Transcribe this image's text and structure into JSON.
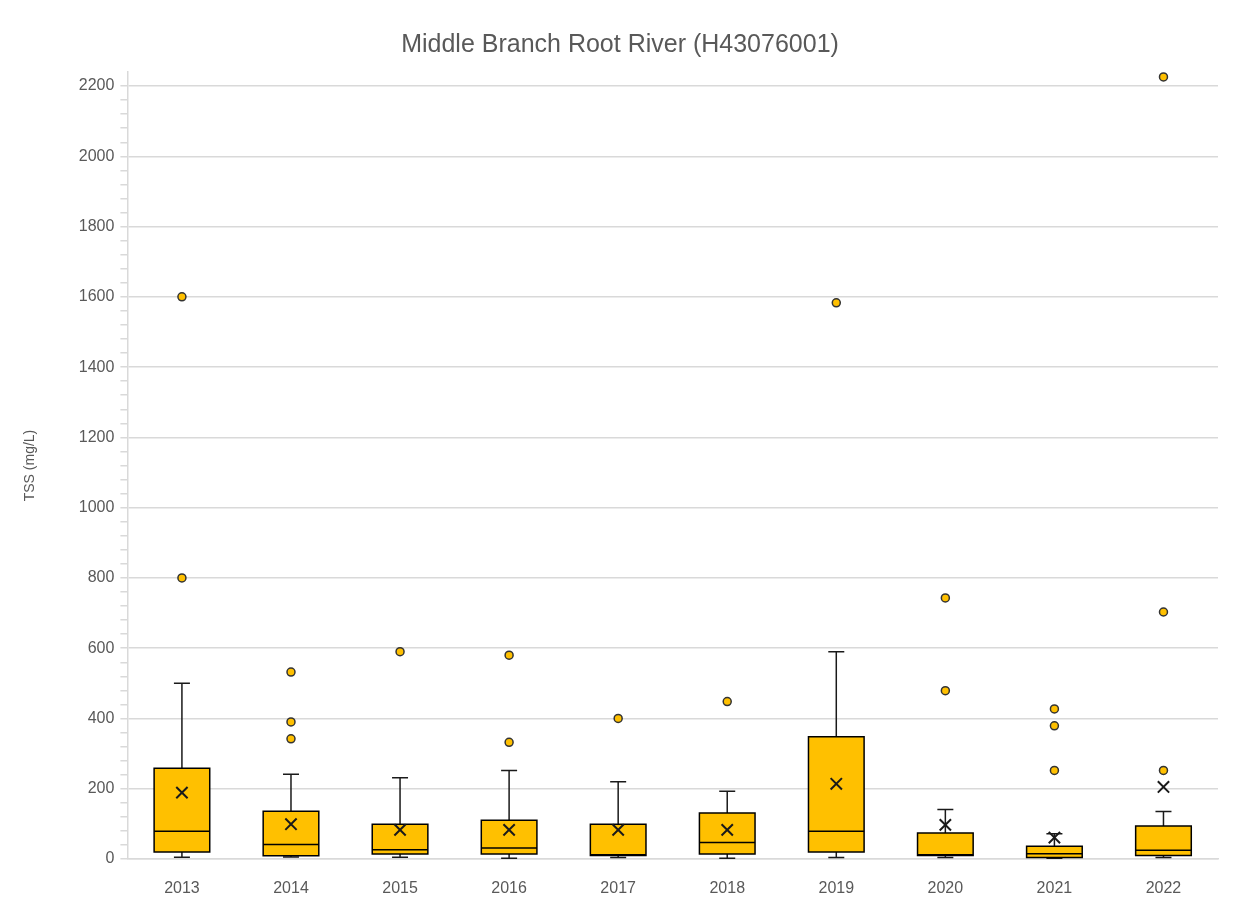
{
  "chart_data": {
    "type": "box",
    "title": "Middle Branch Root River (H43076001)",
    "ylabel": "TSS (mg/L)",
    "categories": [
      "2013",
      "2014",
      "2015",
      "2016",
      "2017",
      "2018",
      "2019",
      "2020",
      "2021",
      "2022"
    ],
    "series": [
      {
        "color": "#ffc000",
        "boxes": [
          {
            "low": 5,
            "q1": 20,
            "median": 79,
            "q3": 258,
            "high": 500,
            "mean": 189,
            "outliers": [
              800,
              1600
            ]
          },
          {
            "low": 6,
            "q1": 9,
            "median": 41,
            "q3": 136,
            "high": 241,
            "mean": 99,
            "outliers": [
              342,
              390,
              532
            ]
          },
          {
            "low": 5,
            "q1": 14,
            "median": 26,
            "q3": 99,
            "high": 231,
            "mean": 83,
            "outliers": [
              590
            ]
          },
          {
            "low": 2,
            "q1": 14,
            "median": 31,
            "q3": 110,
            "high": 252,
            "mean": 83,
            "outliers": [
              332,
              580
            ]
          },
          {
            "low": 4,
            "q1": 10,
            "median": 12,
            "q3": 99,
            "high": 220,
            "mean": 83,
            "outliers": [
              400
            ]
          },
          {
            "low": 2,
            "q1": 14,
            "median": 47,
            "q3": 131,
            "high": 193,
            "mean": 83,
            "outliers": [
              448
            ]
          },
          {
            "low": 4,
            "q1": 20,
            "median": 79,
            "q3": 348,
            "high": 590,
            "mean": 214,
            "outliers": [
              1583
            ]
          },
          {
            "low": 4,
            "q1": 10,
            "median": 12,
            "q3": 74,
            "high": 141,
            "mean": 97,
            "outliers": [
              479,
              743
            ]
          },
          {
            "low": 2,
            "q1": 4,
            "median": 15,
            "q3": 36,
            "high": 72,
            "mean": 61,
            "outliers": [
              252,
              379,
              427
            ]
          },
          {
            "low": 4,
            "q1": 10,
            "median": 25,
            "q3": 94,
            "high": 135,
            "mean": 205,
            "outliers": [
              252,
              703,
              2226
            ]
          }
        ]
      }
    ],
    "ylim": [
      0,
      2240
    ],
    "yticks": [
      0,
      {
        "value": 40,
        "label": null
      },
      {
        "value": 80,
        "label": null
      },
      {
        "value": 120,
        "label": null
      },
      {
        "value": 160,
        "label": null
      },
      200,
      {
        "value": 240,
        "label": null
      },
      {
        "value": 280,
        "label": null
      },
      {
        "value": 320,
        "label": null
      },
      {
        "value": 360,
        "label": null
      },
      400,
      {
        "value": 440,
        "label": null
      },
      {
        "value": 480,
        "label": null
      },
      {
        "value": 520,
        "label": null
      },
      {
        "value": 560,
        "label": null
      },
      600,
      {
        "value": 640,
        "label": null
      },
      {
        "value": 680,
        "label": null
      },
      {
        "value": 720,
        "label": null
      },
      {
        "value": 760,
        "label": null
      },
      800,
      {
        "value": 840,
        "label": null
      },
      {
        "value": 880,
        "label": null
      },
      {
        "value": 920,
        "label": null
      },
      {
        "value": 960,
        "label": null
      },
      1000,
      {
        "value": 1040,
        "label": null
      },
      {
        "value": 1080,
        "label": null
      },
      {
        "value": 1120,
        "label": null
      },
      {
        "value": 1160,
        "label": null
      },
      1200,
      {
        "value": 1240,
        "label": null
      },
      {
        "value": 1280,
        "label": null
      },
      {
        "value": 1320,
        "label": null
      },
      {
        "value": 1360,
        "label": null
      },
      1400,
      {
        "value": 1440,
        "label": null
      },
      {
        "value": 1480,
        "label": null
      },
      {
        "value": 1520,
        "label": null
      },
      {
        "value": 1560,
        "label": null
      },
      1600,
      {
        "value": 1640,
        "label": null
      },
      {
        "value": 1680,
        "label": null
      },
      {
        "value": 1720,
        "label": null
      },
      {
        "value": 1760,
        "label": null
      },
      1800,
      {
        "value": 1840,
        "label": null
      },
      {
        "value": 1880,
        "label": null
      },
      {
        "value": 1920,
        "label": null
      },
      {
        "value": 1960,
        "label": null
      },
      2000,
      {
        "value": 2040,
        "label": null
      },
      {
        "value": 2080,
        "label": null
      },
      {
        "value": 2120,
        "label": null
      },
      {
        "value": 2160,
        "label": null
      },
      2200
    ],
    "grid": "y"
  }
}
